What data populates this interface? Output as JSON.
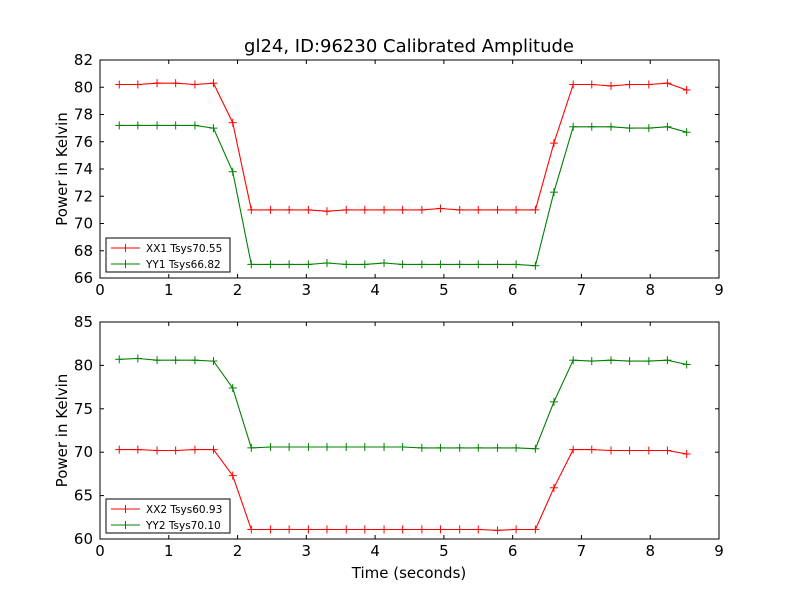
{
  "figure": {
    "title": "gl24, ID:96230 Calibrated Amplitude",
    "xlabel": "Time (seconds)"
  },
  "chart_data": [
    {
      "type": "line",
      "title": "gl24, ID:96230 Calibrated Amplitude",
      "xlabel": "",
      "ylabel": "Power in Kelvin",
      "xlim": [
        0,
        9
      ],
      "ylim": [
        66,
        82
      ],
      "xticks": [
        0,
        1,
        2,
        3,
        4,
        5,
        6,
        7,
        8,
        9
      ],
      "yticks": [
        66,
        68,
        70,
        72,
        74,
        76,
        78,
        80,
        82
      ],
      "grid": false,
      "legend_position": "lower-left",
      "x": [
        0.28,
        0.55,
        0.83,
        1.1,
        1.38,
        1.65,
        1.93,
        2.2,
        2.48,
        2.75,
        3.03,
        3.3,
        3.58,
        3.85,
        4.13,
        4.4,
        4.68,
        4.95,
        5.23,
        5.5,
        5.78,
        6.05,
        6.33,
        6.6,
        6.88,
        7.15,
        7.43,
        7.7,
        7.98,
        8.25,
        8.53
      ],
      "series": [
        {
          "name": "XX1 Tsys70.55",
          "color": "#ff0000",
          "values": [
            80.2,
            80.2,
            80.3,
            80.3,
            80.2,
            80.3,
            77.4,
            71.0,
            71.0,
            71.0,
            71.0,
            70.9,
            71.0,
            71.0,
            71.0,
            71.0,
            71.0,
            71.1,
            71.0,
            71.0,
            71.0,
            71.0,
            71.0,
            75.9,
            80.2,
            80.2,
            80.1,
            80.2,
            80.2,
            80.3,
            79.8
          ]
        },
        {
          "name": "YY1 Tsys66.82",
          "color": "#008000",
          "values": [
            77.2,
            77.2,
            77.2,
            77.2,
            77.2,
            77.0,
            73.8,
            67.0,
            67.0,
            67.0,
            67.0,
            67.1,
            67.0,
            67.0,
            67.1,
            67.0,
            67.0,
            67.0,
            67.0,
            67.0,
            67.0,
            67.0,
            66.9,
            72.3,
            77.1,
            77.1,
            77.1,
            77.0,
            77.0,
            77.1,
            76.7
          ]
        }
      ]
    },
    {
      "type": "line",
      "title": "",
      "xlabel": "Time (seconds)",
      "ylabel": "Power in Kelvin",
      "xlim": [
        0,
        9
      ],
      "ylim": [
        60,
        85
      ],
      "xticks": [
        0,
        1,
        2,
        3,
        4,
        5,
        6,
        7,
        8,
        9
      ],
      "yticks": [
        60,
        65,
        70,
        75,
        80,
        85
      ],
      "grid": false,
      "legend_position": "lower-left",
      "x": [
        0.28,
        0.55,
        0.83,
        1.1,
        1.38,
        1.65,
        1.93,
        2.2,
        2.48,
        2.75,
        3.03,
        3.3,
        3.58,
        3.85,
        4.13,
        4.4,
        4.68,
        4.95,
        5.23,
        5.5,
        5.78,
        6.05,
        6.33,
        6.6,
        6.88,
        7.15,
        7.43,
        7.7,
        7.98,
        8.25,
        8.53
      ],
      "series": [
        {
          "name": "XX2 Tsys60.93",
          "color": "#ff0000",
          "values": [
            70.3,
            70.3,
            70.2,
            70.2,
            70.3,
            70.3,
            67.3,
            61.1,
            61.1,
            61.1,
            61.1,
            61.1,
            61.1,
            61.1,
            61.1,
            61.1,
            61.1,
            61.1,
            61.1,
            61.1,
            61.0,
            61.1,
            61.1,
            65.9,
            70.3,
            70.3,
            70.2,
            70.2,
            70.2,
            70.2,
            69.8
          ]
        },
        {
          "name": "YY2 Tsys70.10",
          "color": "#008000",
          "values": [
            80.7,
            80.8,
            80.6,
            80.6,
            80.6,
            80.5,
            77.4,
            70.5,
            70.6,
            70.6,
            70.6,
            70.6,
            70.6,
            70.6,
            70.6,
            70.6,
            70.5,
            70.5,
            70.5,
            70.5,
            70.5,
            70.5,
            70.4,
            75.8,
            80.6,
            80.5,
            80.6,
            80.5,
            80.5,
            80.6,
            80.1
          ]
        }
      ]
    }
  ]
}
